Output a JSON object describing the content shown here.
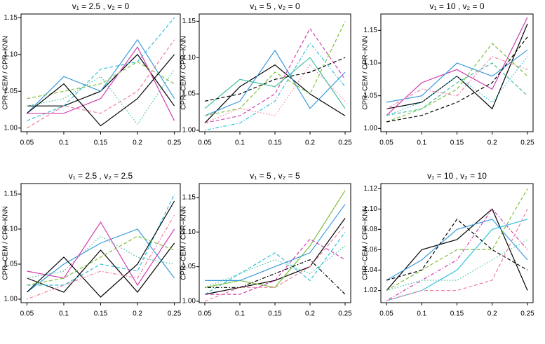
{
  "chart_data": [
    {
      "type": "line",
      "title": "v₁ = 2.5 , v₂ = 0",
      "y_label": "CPR−CEM / CPR−KNN",
      "x": [
        0.05,
        0.1,
        0.15,
        0.2,
        0.25
      ],
      "xlim": [
        0.042,
        0.258
      ],
      "xticks": [
        0.05,
        0.1,
        0.15,
        0.2,
        0.25
      ],
      "ylim": [
        0.995,
        1.155
      ],
      "yticks": [
        {
          "value": 1,
          "label": "1.00"
        },
        1.05,
        {
          "value": 1.1,
          "label": "1.10"
        },
        1.15
      ],
      "series": [
        {
          "color": "#000000",
          "dash": "solid",
          "values": [
            1.03,
            1.03,
            1.05,
            1.1,
            1.03
          ]
        },
        {
          "color": "#3a9bdc",
          "dash": "solid",
          "values": [
            1.02,
            1.07,
            1.05,
            1.12,
            1.04
          ]
        },
        {
          "color": "#30c0e0",
          "dash": "dashed",
          "values": [
            1.01,
            1.03,
            1.08,
            1.09,
            1.15
          ]
        },
        {
          "color": "#d040b0",
          "dash": "solid",
          "values": [
            1.02,
            1.02,
            1.04,
            1.11,
            1.01
          ]
        },
        {
          "color": "#7cc03c",
          "dash": "dashed",
          "values": [
            1.04,
            1.05,
            1.06,
            1.09,
            1.06
          ]
        },
        {
          "color": "#f080a0",
          "dash": "dashed",
          "values": [
            1.0,
            1.03,
            1.02,
            1.05,
            1.12
          ]
        },
        {
          "color": "#000000",
          "dash": "solid",
          "values": [
            1.02,
            1.06,
            1.003,
            1.04,
            1.1
          ]
        },
        {
          "color": "#40c0a0",
          "dash": "dotted",
          "values": [
            1.03,
            1.04,
            1.07,
            1.005,
            1.08
          ]
        }
      ]
    },
    {
      "type": "line",
      "title": "v₁ = 5 , v₂ = 0",
      "y_label": "CPR−CEM / CPR−KNN",
      "x": [
        0.05,
        0.1,
        0.15,
        0.2,
        0.25
      ],
      "xlim": [
        0.042,
        0.258
      ],
      "xticks": [
        0.05,
        0.1,
        0.15,
        0.2,
        0.25
      ],
      "ylim": [
        0.998,
        1.16
      ],
      "yticks": [
        {
          "value": 1,
          "label": "1.00"
        },
        1.05,
        {
          "value": 1.1,
          "label": "1.10"
        },
        1.15
      ],
      "series": [
        {
          "color": "#000000",
          "dash": "solid",
          "values": [
            1.01,
            1.06,
            1.09,
            1.05,
            1.02
          ]
        },
        {
          "color": "#3a9bdc",
          "dash": "solid",
          "values": [
            1.02,
            1.04,
            1.11,
            1.03,
            1.08
          ]
        },
        {
          "color": "#d040b0",
          "dash": "dashed",
          "values": [
            1.01,
            1.02,
            1.05,
            1.14,
            1.07
          ]
        },
        {
          "color": "#40c0a0",
          "dash": "solid",
          "values": [
            1.03,
            1.07,
            1.06,
            1.1,
            1.03
          ]
        },
        {
          "color": "#7cc03c",
          "dash": "dashed",
          "values": [
            1.02,
            1.03,
            1.08,
            1.05,
            1.15
          ]
        },
        {
          "color": "#30c0e0",
          "dash": "dotdash",
          "values": [
            1.0,
            1.01,
            1.04,
            1.12,
            1.06
          ]
        },
        {
          "color": "#000000",
          "dash": "dashed",
          "values": [
            1.04,
            1.05,
            1.07,
            1.08,
            1.1
          ]
        },
        {
          "color": "#f080a0",
          "dash": "dotted",
          "values": [
            1.01,
            1.03,
            1.02,
            1.09,
            1.04
          ]
        }
      ]
    },
    {
      "type": "line",
      "title": "v₁ = 10 , v₂ = 0",
      "y_label": "CPR−CEM / CPR−KNN",
      "x": [
        0.05,
        0.1,
        0.15,
        0.2,
        0.25
      ],
      "xlim": [
        0.042,
        0.258
      ],
      "xticks": [
        0.05,
        0.1,
        0.15,
        0.2,
        0.25
      ],
      "ylim": [
        0.995,
        1.175
      ],
      "yticks": [
        {
          "value": 1,
          "label": "1.00"
        },
        1.05,
        {
          "value": 1.1,
          "label": "1.10"
        },
        1.15
      ],
      "series": [
        {
          "color": "#000000",
          "dash": "solid",
          "values": [
            1.03,
            1.04,
            1.08,
            1.03,
            1.16
          ]
        },
        {
          "color": "#d040b0",
          "dash": "solid",
          "values": [
            1.02,
            1.07,
            1.09,
            1.06,
            1.17
          ]
        },
        {
          "color": "#7cc03c",
          "dash": "dashed",
          "values": [
            1.01,
            1.03,
            1.06,
            1.13,
            1.08
          ]
        },
        {
          "color": "#3a9bdc",
          "dash": "solid",
          "values": [
            1.04,
            1.05,
            1.1,
            1.08,
            1.12
          ]
        },
        {
          "color": "#40c0a0",
          "dash": "dashed",
          "values": [
            1.02,
            1.03,
            1.07,
            1.1,
            1.05
          ]
        },
        {
          "color": "#000000",
          "dash": "dashed",
          "values": [
            1.01,
            1.02,
            1.04,
            1.07,
            1.14
          ]
        },
        {
          "color": "#f080a0",
          "dash": "dotdash",
          "values": [
            1.03,
            1.06,
            1.05,
            1.11,
            1.09
          ]
        },
        {
          "color": "#30c0e0",
          "dash": "dotted",
          "values": [
            1.02,
            1.04,
            1.08,
            1.04,
            1.11
          ]
        }
      ]
    },
    {
      "type": "line",
      "title": "v₁ = 2.5 , v₂ = 2.5",
      "y_label": "CPR−CEM / CPR−KNN",
      "x": [
        0.05,
        0.1,
        0.15,
        0.2,
        0.25
      ],
      "xlim": [
        0.042,
        0.258
      ],
      "xticks": [
        0.05,
        0.1,
        0.15,
        0.2,
        0.25
      ],
      "ylim": [
        0.995,
        1.165
      ],
      "yticks": [
        {
          "value": 1,
          "label": "1.00"
        },
        1.05,
        {
          "value": 1.1,
          "label": "1.10"
        },
        1.15
      ],
      "series": [
        {
          "color": "#000000",
          "dash": "solid",
          "values": [
            1.03,
            1.01,
            1.07,
            1.01,
            1.08
          ]
        },
        {
          "color": "#3a9bdc",
          "dash": "solid",
          "values": [
            1.01,
            1.05,
            1.08,
            1.1,
            1.03
          ]
        },
        {
          "color": "#30c0e0",
          "dash": "dashed",
          "values": [
            1.02,
            1.02,
            1.05,
            1.04,
            1.15
          ]
        },
        {
          "color": "#d040b0",
          "dash": "solid",
          "values": [
            1.04,
            1.03,
            1.11,
            1.02,
            1.1
          ]
        },
        {
          "color": "#000000",
          "dash": "solid",
          "values": [
            1.01,
            1.06,
            1.003,
            1.05,
            1.14
          ]
        },
        {
          "color": "#7cc03c",
          "dash": "dashed",
          "values": [
            1.02,
            1.03,
            1.06,
            1.09,
            1.07
          ]
        },
        {
          "color": "#f080a0",
          "dash": "dotdash",
          "values": [
            1.0,
            1.02,
            1.04,
            1.03,
            1.12
          ]
        },
        {
          "color": "#40c0a0",
          "dash": "dotted",
          "values": [
            1.03,
            1.04,
            1.09,
            1.06,
            1.05
          ]
        }
      ]
    },
    {
      "type": "line",
      "title": "v₁ = 5 , v₂ = 5",
      "y_label": "CPR−CEM / CPR−KNN",
      "x": [
        0.05,
        0.1,
        0.15,
        0.2,
        0.25
      ],
      "xlim": [
        0.042,
        0.258
      ],
      "xticks": [
        0.05,
        0.1,
        0.15,
        0.2,
        0.25
      ],
      "ylim": [
        0.998,
        1.17
      ],
      "yticks": [
        {
          "value": 1,
          "label": "1.00"
        },
        1.05,
        {
          "value": 1.1,
          "label": "1.10"
        },
        1.15
      ],
      "series": [
        {
          "color": "#000000",
          "dash": "solid",
          "values": [
            1.01,
            1.02,
            1.03,
            1.05,
            1.12
          ]
        },
        {
          "color": "#7cc03c",
          "dash": "solid",
          "values": [
            1.02,
            1.03,
            1.02,
            1.08,
            1.16
          ]
        },
        {
          "color": "#30c0e0",
          "dash": "dashed",
          "values": [
            1.01,
            1.04,
            1.07,
            1.03,
            1.1
          ]
        },
        {
          "color": "#000000",
          "dash": "dotdash",
          "values": [
            1.02,
            1.02,
            1.04,
            1.06,
            1.01
          ]
        },
        {
          "color": "#3a9bdc",
          "dash": "solid",
          "values": [
            1.03,
            1.03,
            1.05,
            1.07,
            1.14
          ]
        },
        {
          "color": "#d040b0",
          "dash": "dashed",
          "values": [
            1.01,
            1.01,
            1.03,
            1.09,
            1.06
          ]
        },
        {
          "color": "#40c0a0",
          "dash": "dotted",
          "values": [
            1.02,
            1.04,
            1.06,
            1.04,
            1.08
          ]
        },
        {
          "color": "#f080a0",
          "dash": "dashed",
          "values": [
            1.0,
            1.02,
            1.02,
            1.05,
            1.11
          ]
        }
      ]
    },
    {
      "type": "line",
      "title": "v₁ = 10 , v₂ = 10",
      "y_label": "CPR−CEM / CPR−KNN",
      "x": [
        0.05,
        0.1,
        0.15,
        0.2,
        0.25
      ],
      "xlim": [
        0.042,
        0.258
      ],
      "xticks": [
        0.05,
        0.1,
        0.15,
        0.2,
        0.25
      ],
      "ylim": [
        1.008,
        1.125
      ],
      "yticks": [
        1.02,
        1.04,
        1.06,
        1.08,
        {
          "value": 1.1,
          "label": "1.10"
        },
        1.12
      ],
      "series": [
        {
          "color": "#000000",
          "dash": "solid",
          "values": [
            1.02,
            1.06,
            1.07,
            1.1,
            1.02
          ]
        },
        {
          "color": "#3a9bdc",
          "dash": "solid",
          "values": [
            1.03,
            1.05,
            1.08,
            1.09,
            1.05
          ]
        },
        {
          "color": "#d040b0",
          "dash": "dotdash",
          "values": [
            1.01,
            1.03,
            1.05,
            1.1,
            1.06
          ]
        },
        {
          "color": "#7cc03c",
          "dash": "dashed",
          "values": [
            1.02,
            1.04,
            1.06,
            1.06,
            1.12
          ]
        },
        {
          "color": "#30c0e0",
          "dash": "solid",
          "values": [
            1.01,
            1.02,
            1.04,
            1.08,
            1.09
          ]
        },
        {
          "color": "#000000",
          "dash": "dashed",
          "values": [
            1.03,
            1.04,
            1.09,
            1.06,
            1.04
          ]
        },
        {
          "color": "#40c0a0",
          "dash": "dotted",
          "values": [
            1.02,
            1.03,
            1.03,
            1.05,
            1.07
          ]
        },
        {
          "color": "#f080a0",
          "dash": "dashed",
          "values": [
            1.01,
            1.02,
            1.02,
            1.03,
            1.1
          ]
        }
      ]
    }
  ]
}
